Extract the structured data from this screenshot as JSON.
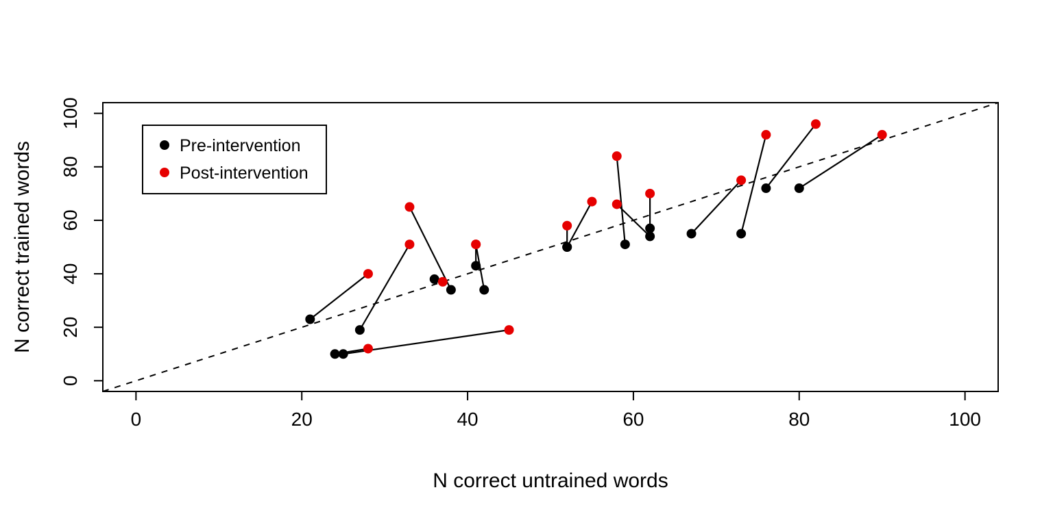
{
  "figure": {
    "background": "#ffffff",
    "plot_border_color": "#000000"
  },
  "chart_data": {
    "type": "paired-scatter",
    "title": "",
    "xlabel": "N correct untrained words",
    "ylabel": "N correct trained words",
    "xlim": [
      -4,
      104
    ],
    "ylim": [
      -4,
      104
    ],
    "xticks": [
      0,
      20,
      40,
      60,
      80,
      100
    ],
    "yticks": [
      0,
      20,
      40,
      60,
      80,
      100
    ],
    "grid": false,
    "pre_color": "#000000",
    "post_color": "#e60000",
    "identity_line": {
      "style": "dashed",
      "slope": 1,
      "intercept": 0
    },
    "legend": {
      "position": "top-left",
      "entries": [
        {
          "label": "Pre-intervention",
          "color": "#000000"
        },
        {
          "label": "Post-intervention",
          "color": "#e60000"
        }
      ]
    },
    "pairs": [
      {
        "pre": [
          21,
          23
        ],
        "post": [
          28,
          40
        ]
      },
      {
        "pre": [
          24,
          10
        ],
        "post": [
          28,
          12
        ]
      },
      {
        "pre": [
          25,
          10
        ],
        "post": [
          45,
          19
        ]
      },
      {
        "pre": [
          27,
          19
        ],
        "post": [
          33,
          51
        ]
      },
      {
        "pre": [
          36,
          38
        ],
        "post": [
          37,
          37
        ]
      },
      {
        "pre": [
          38,
          34
        ],
        "post": [
          33,
          65
        ]
      },
      {
        "pre": [
          41,
          43
        ],
        "post": [
          41,
          51
        ]
      },
      {
        "pre": [
          42,
          34
        ],
        "post": [
          41,
          51
        ]
      },
      {
        "pre": [
          52,
          50
        ],
        "post": [
          52,
          58
        ]
      },
      {
        "pre": [
          52,
          50
        ],
        "post": [
          55,
          67
        ]
      },
      {
        "pre": [
          59,
          51
        ],
        "post": [
          58,
          84
        ]
      },
      {
        "pre": [
          62,
          54
        ],
        "post": [
          58,
          66
        ]
      },
      {
        "pre": [
          62,
          57
        ],
        "post": [
          62,
          70
        ]
      },
      {
        "pre": [
          67,
          55
        ],
        "post": [
          73,
          75
        ]
      },
      {
        "pre": [
          73,
          55
        ],
        "post": [
          76,
          92
        ]
      },
      {
        "pre": [
          76,
          72
        ],
        "post": [
          82,
          96
        ]
      },
      {
        "pre": [
          80,
          72
        ],
        "post": [
          90,
          92
        ]
      }
    ]
  }
}
